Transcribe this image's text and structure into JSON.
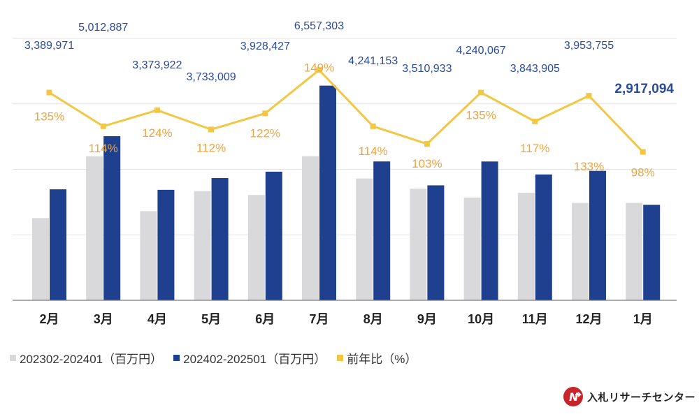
{
  "chart_data": {
    "type": "bar",
    "categories": [
      "2月",
      "3月",
      "4月",
      "5月",
      "6月",
      "7月",
      "8月",
      "9月",
      "10月",
      "11月",
      "12月",
      "1月"
    ],
    "series": [
      {
        "name": "202302-202401（百万円）",
        "color": "#d9d9dc",
        "values": [
          2511000,
          4399000,
          2722000,
          3334000,
          3218000,
          4401000,
          3720000,
          3408000,
          3141000,
          3285000,
          2973000,
          2975000
        ]
      },
      {
        "name": "202402-202501（百万円）",
        "color": "#1f3f8f",
        "values": [
          3389971,
          5012887,
          3373922,
          3733009,
          3928427,
          6557303,
          4241153,
          3510933,
          4240067,
          3843905,
          3953755,
          2917094
        ]
      }
    ],
    "line_series": {
      "name": "前年比（%）",
      "color": "#f2c744",
      "label_color": "#f0a53c",
      "values": [
        135,
        114,
        124,
        112,
        122,
        149,
        114,
        103,
        135,
        117,
        133,
        98
      ]
    },
    "bar_labels": [
      "3,389,971",
      "5,012,887",
      "3,373,922",
      "3,733,009",
      "3,928,427",
      "6,557,303",
      "4,241,153",
      "3,510,933",
      "4,240,067",
      "3,843,905",
      "3,953,755",
      "2,917,094"
    ],
    "line_labels": [
      "135%",
      "114%",
      "124%",
      "112%",
      "122%",
      "149%",
      "114%",
      "103%",
      "135%",
      "117%",
      "133%",
      "98%"
    ],
    "ylim": [
      0,
      8000000
    ],
    "y2lim": [
      50,
      160
    ],
    "grid": true,
    "legend": "bottom-left",
    "xlabel": "",
    "ylabel": "",
    "title": ""
  },
  "legend": {
    "items": [
      {
        "label": "202302-202401（百万円）",
        "color": "#d9d9dc"
      },
      {
        "label": "202402-202501（百万円）",
        "color": "#1f3f8f"
      },
      {
        "label": "前年比（%）",
        "color": "#f2c744"
      }
    ]
  },
  "brand": {
    "name": "入札リサーチセンター",
    "logo_text": "N"
  }
}
